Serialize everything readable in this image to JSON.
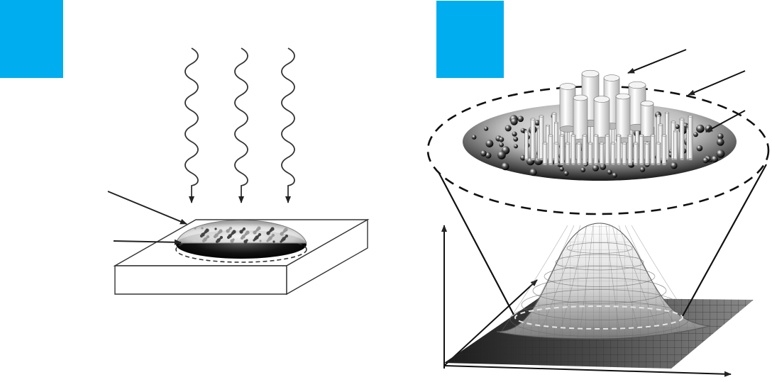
{
  "panels": [
    {
      "id": "a",
      "label_color": "#00adef"
    },
    {
      "id": "b",
      "label_color": "#00adef"
    }
  ],
  "colors": {
    "stroke": "#333333",
    "dark": "#111111",
    "mid_gray": "#9a9a9a",
    "light_gray": "#e8e8e8",
    "substrate_fill": "#ffffff"
  },
  "icons": {
    "radiation": "wavy-arrow-icon",
    "pointer": "arrow-icon",
    "particle": "sphere-icon",
    "crystal": "cylinder-icon"
  }
}
